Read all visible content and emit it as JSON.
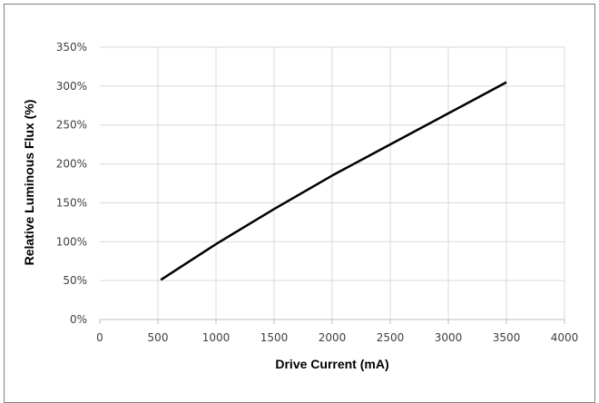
{
  "chart_data": {
    "type": "line",
    "title": "",
    "xlabel": "Drive Current (mA)",
    "ylabel": "Relative Luminous Flux (%)",
    "xlim": [
      0,
      4000
    ],
    "ylim": [
      0,
      350
    ],
    "x_ticks": [
      "0",
      "500",
      "1000",
      "1500",
      "2000",
      "2500",
      "3000",
      "3500",
      "4000"
    ],
    "y_ticks": [
      "0%",
      "50%",
      "100%",
      "150%",
      "200%",
      "250%",
      "300%",
      "350%"
    ],
    "grid": true,
    "legend": "none",
    "series": [
      {
        "color": "#000000",
        "x": [
          525,
          1000,
          1500,
          2000,
          2500,
          3000,
          3500
        ],
        "y": [
          51,
          97,
          142,
          185,
          225,
          265,
          305
        ]
      }
    ]
  }
}
